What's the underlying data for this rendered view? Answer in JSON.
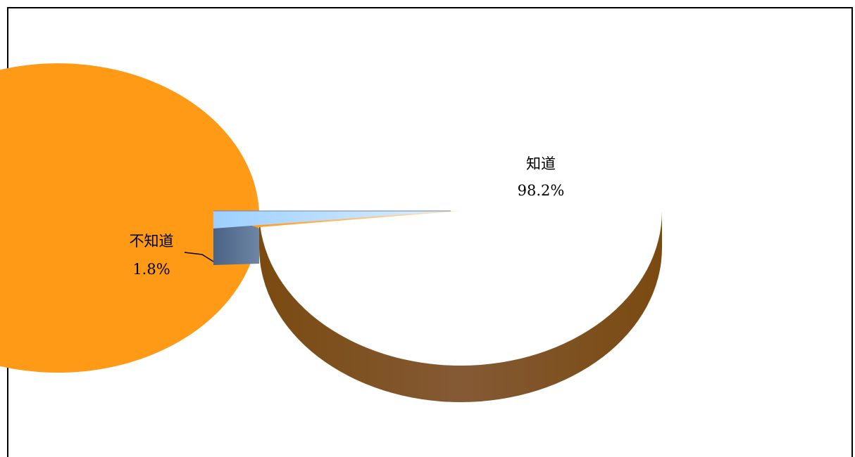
{
  "chart_data": {
    "type": "pie",
    "title": "",
    "slices": [
      {
        "label": "知道",
        "value": 98.2,
        "value_label": "98.2%",
        "color": "#FF9A17"
      },
      {
        "label": "不知道",
        "value": 1.8,
        "value_label": "1.8%",
        "color": "#8EC5F5"
      }
    ],
    "style": "3d",
    "legend": "none"
  }
}
